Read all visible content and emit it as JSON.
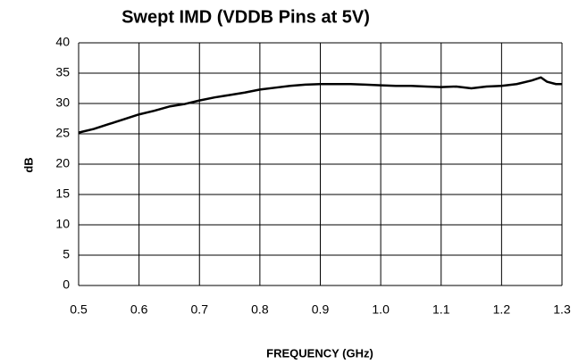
{
  "chart_data": {
    "type": "line",
    "title": "Swept IMD (VDDB Pins at 5V)",
    "x_label": "FREQUENCY (GHz)",
    "y_label": "dB",
    "x": [
      0.5,
      0.525,
      0.55,
      0.575,
      0.6,
      0.625,
      0.65,
      0.675,
      0.7,
      0.725,
      0.75,
      0.775,
      0.8,
      0.825,
      0.85,
      0.875,
      0.9,
      0.925,
      0.95,
      0.975,
      1.0,
      1.025,
      1.05,
      1.075,
      1.1,
      1.125,
      1.15,
      1.175,
      1.2,
      1.225,
      1.25,
      1.265,
      1.275,
      1.29,
      1.3
    ],
    "series": [
      {
        "name": "IMD",
        "color": "#000000",
        "values": [
          25.2,
          25.8,
          26.6,
          27.4,
          28.2,
          28.8,
          29.5,
          29.9,
          30.5,
          31.0,
          31.4,
          31.8,
          32.3,
          32.6,
          32.9,
          33.1,
          33.2,
          33.2,
          33.2,
          33.1,
          33.0,
          32.9,
          32.9,
          32.8,
          32.7,
          32.8,
          32.5,
          32.8,
          32.9,
          33.2,
          33.8,
          34.3,
          33.6,
          33.2,
          33.2
        ]
      }
    ],
    "xlim": [
      0.5,
      1.3
    ],
    "xticks": [
      0.5,
      0.6,
      0.7,
      0.8,
      0.9,
      {
        "value": 1,
        "label": "1.0"
      },
      1.1,
      1.2,
      1.3
    ],
    "ylim": [
      0,
      40
    ],
    "yticks": [
      0,
      5,
      10,
      15,
      20,
      25,
      30,
      35,
      40
    ],
    "grid": true
  }
}
